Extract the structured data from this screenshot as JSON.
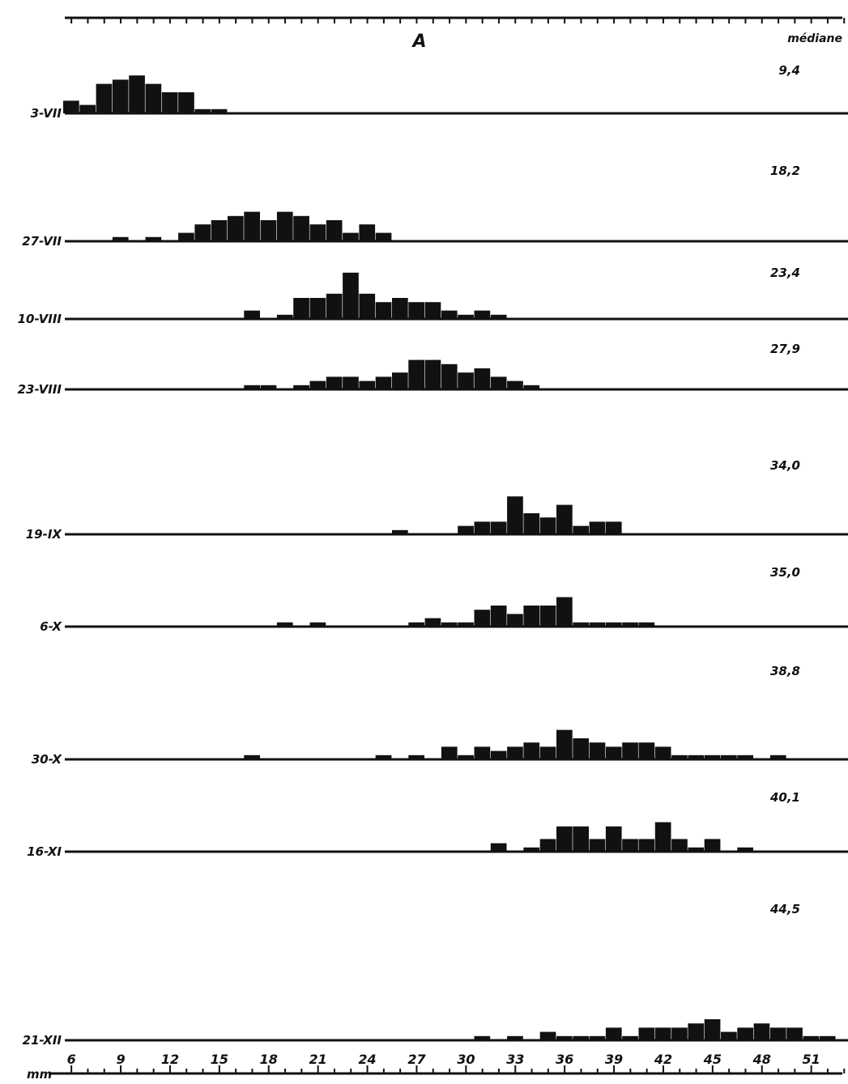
{
  "chart_data": {
    "type": "bar",
    "title": "A",
    "unit_label": "mm",
    "median_header": "médiane",
    "x_ticks": [
      "6",
      "9",
      "12",
      "15",
      "18",
      "21",
      "24",
      "27",
      "30",
      "33",
      "36",
      "39",
      "42",
      "45",
      "48",
      "51"
    ],
    "bin_width_mm": 1,
    "colors": {
      "bars": "#111111",
      "axis": "#111111",
      "background": "#ffffff"
    },
    "series": [
      {
        "name": "3-VII",
        "median": "9,4",
        "bins": [
          6,
          7,
          8,
          9,
          10,
          11,
          12,
          13,
          14,
          15
        ],
        "values": [
          3,
          2,
          7,
          8,
          9,
          7,
          5,
          5,
          1,
          1
        ]
      },
      {
        "name": "27-VII",
        "median": "18,2",
        "bins": [
          9,
          11,
          13,
          14,
          15,
          16,
          17,
          18,
          19,
          20,
          21,
          22,
          23,
          24,
          25
        ],
        "values": [
          1,
          1,
          2,
          4,
          5,
          6,
          7,
          5,
          7,
          6,
          4,
          5,
          2,
          4,
          2
        ]
      },
      {
        "name": "10-VIII",
        "median": "23,4",
        "bins": [
          17,
          19,
          20,
          21,
          22,
          23,
          24,
          25,
          26,
          27,
          28,
          29,
          30,
          31,
          32
        ],
        "values": [
          2,
          1,
          5,
          5,
          6,
          11,
          6,
          4,
          5,
          4,
          4,
          2,
          1,
          2,
          1
        ]
      },
      {
        "name": "23-VIII",
        "median": "27,9",
        "bins": [
          17,
          18,
          20,
          21,
          22,
          23,
          24,
          25,
          26,
          27,
          28,
          29,
          30,
          31,
          32,
          33,
          34
        ],
        "values": [
          1,
          1,
          1,
          2,
          3,
          3,
          2,
          3,
          4,
          7,
          7,
          6,
          4,
          5,
          3,
          2,
          1
        ]
      },
      {
        "name": "19-IX",
        "median": "34,0",
        "bins": [
          26,
          30,
          31,
          32,
          33,
          34,
          35,
          36,
          37,
          38,
          39
        ],
        "values": [
          1,
          2,
          3,
          3,
          9,
          5,
          4,
          7,
          2,
          3,
          3
        ]
      },
      {
        "name": "6-X",
        "median": "35,0",
        "bins": [
          19,
          21,
          27,
          28,
          29,
          30,
          31,
          32,
          33,
          34,
          35,
          36,
          37,
          38,
          39,
          40,
          41
        ],
        "values": [
          1,
          1,
          1,
          2,
          1,
          1,
          4,
          5,
          3,
          5,
          5,
          7,
          1,
          1,
          1,
          1,
          1
        ]
      },
      {
        "name": "30-X",
        "median": "38,8",
        "bins": [
          17,
          25,
          27,
          29,
          30,
          31,
          32,
          33,
          34,
          35,
          36,
          37,
          38,
          39,
          40,
          41,
          42,
          43,
          44,
          45,
          46,
          47,
          49
        ],
        "values": [
          1,
          1,
          1,
          3,
          1,
          3,
          2,
          3,
          4,
          3,
          7,
          5,
          4,
          3,
          4,
          4,
          3,
          1,
          1,
          1,
          1,
          1,
          1
        ]
      },
      {
        "name": "16-XI",
        "median": "40,1",
        "bins": [
          32,
          34,
          35,
          36,
          37,
          38,
          39,
          40,
          41,
          42,
          43,
          44,
          45,
          47
        ],
        "values": [
          2,
          1,
          3,
          6,
          6,
          3,
          6,
          3,
          3,
          7,
          3,
          1,
          3,
          1
        ]
      },
      {
        "name": "21-XII",
        "median": "44,5",
        "bins": [
          31,
          33,
          35,
          36,
          37,
          38,
          39,
          40,
          41,
          42,
          43,
          44,
          45,
          46,
          47,
          48,
          49,
          50,
          51,
          52
        ],
        "values": [
          1,
          1,
          2,
          1,
          1,
          1,
          3,
          1,
          3,
          3,
          3,
          4,
          5,
          2,
          3,
          4,
          3,
          3,
          1,
          1
        ]
      }
    ]
  }
}
